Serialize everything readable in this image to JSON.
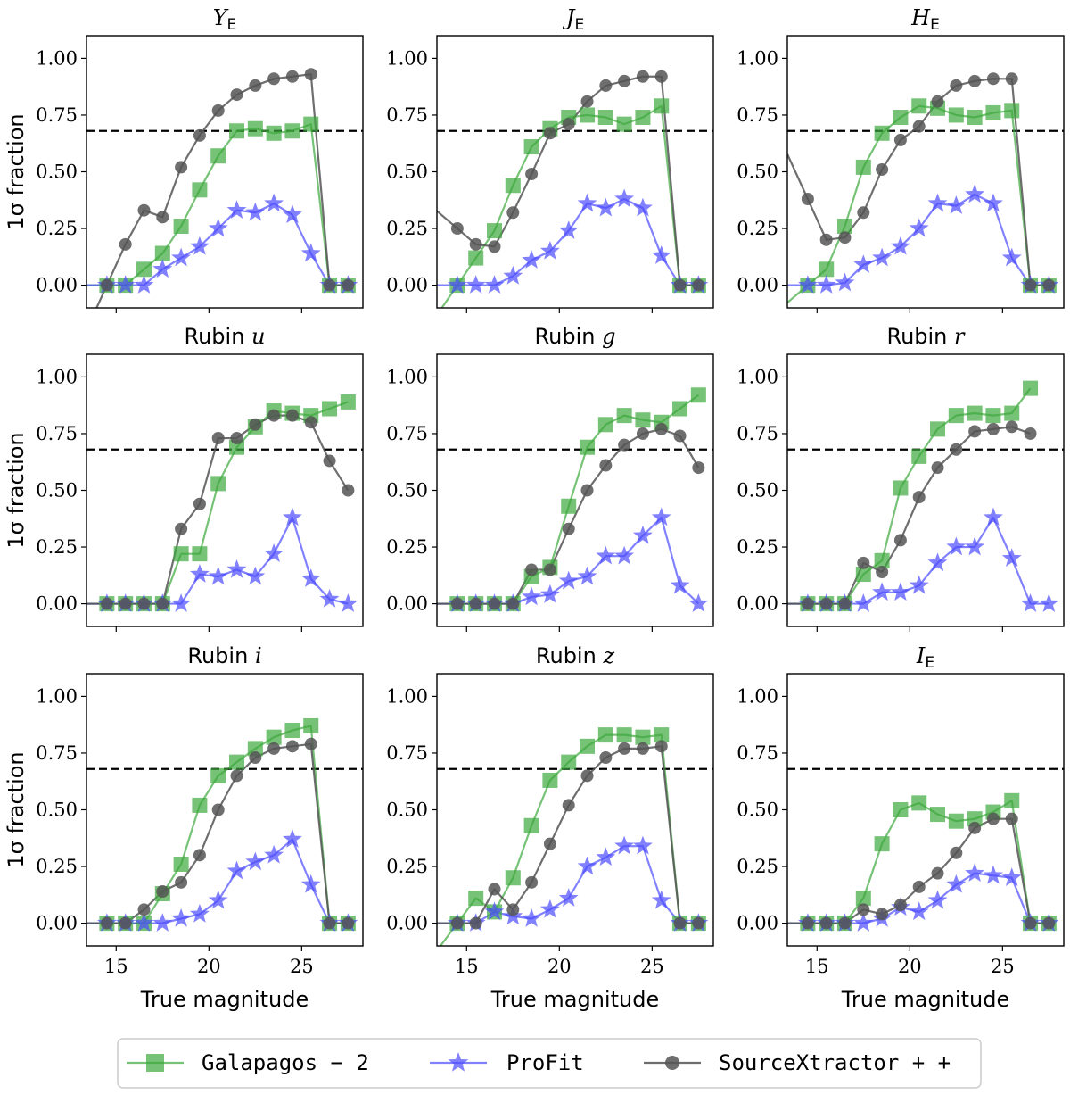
{
  "chart_data": {
    "type": "line",
    "panel_grid": "3x3",
    "shared_x": [
      14.5,
      15.5,
      16.5,
      17.5,
      18.5,
      19.5,
      20.5,
      21.5,
      22.5,
      23.5,
      24.5,
      25.5,
      26.5,
      27.5
    ],
    "xlim": [
      13.4,
      28.3
    ],
    "ylim": [
      -0.1,
      1.1
    ],
    "xticks": [
      "15",
      "20",
      "25"
    ],
    "yticks": [
      "0.00",
      "0.25",
      "0.50",
      "0.75",
      "1.00"
    ],
    "ylabel": "1σ fraction",
    "xlabel": "True magnitude",
    "reference_line": 0.68,
    "legend": {
      "placement": "bottom-center",
      "entries": [
        {
          "name": "Galapagos − 2",
          "color": "#3ca83c",
          "marker": "square"
        },
        {
          "name": "ProFit",
          "color": "#4b4bff",
          "marker": "star"
        },
        {
          "name": "SourceXtractor + +",
          "color": "#555555",
          "marker": "circle"
        }
      ]
    },
    "panels": [
      {
        "title_prefix": "",
        "title_ital": "Y",
        "title_sub": "E",
        "series": {
          "galapagos": [
            0,
            0,
            0.07,
            0.14,
            0.26,
            0.42,
            0.57,
            0.68,
            0.69,
            0.67,
            0.68,
            0.71,
            0,
            0
          ],
          "profit": [
            0,
            0,
            0,
            0.07,
            0.12,
            0.17,
            0.25,
            0.33,
            0.32,
            0.36,
            0.31,
            0.14,
            0,
            0
          ],
          "sextractor": [
            0,
            0.18,
            0.33,
            0.3,
            0.52,
            0.66,
            0.77,
            0.84,
            0.88,
            0.91,
            0.92,
            0.93,
            0,
            0
          ]
        }
      },
      {
        "title_prefix": "",
        "title_ital": "J",
        "title_sub": "E",
        "series": {
          "galapagos": [
            0,
            0.12,
            0.24,
            0.44,
            0.61,
            0.69,
            0.74,
            0.75,
            0.74,
            0.71,
            0.74,
            0.79,
            0,
            0
          ],
          "profit": [
            0,
            0,
            0,
            0.04,
            0.11,
            0.15,
            0.24,
            0.36,
            0.34,
            0.38,
            0.34,
            0.13,
            0,
            0
          ],
          "sextractor": [
            0.25,
            0.18,
            0.17,
            0.32,
            0.49,
            0.67,
            0.71,
            0.81,
            0.88,
            0.9,
            0.92,
            0.92,
            0,
            0
          ]
        }
      },
      {
        "title_prefix": "",
        "title_ital": "H",
        "title_sub": "E",
        "series": {
          "galapagos": [
            0,
            0.07,
            0.26,
            0.52,
            0.67,
            0.74,
            0.79,
            0.78,
            0.75,
            0.74,
            0.76,
            0.77,
            0,
            0
          ],
          "profit": [
            0,
            0,
            0.01,
            0.09,
            0.12,
            0.17,
            0.25,
            0.36,
            0.35,
            0.4,
            0.36,
            0.12,
            0,
            0
          ],
          "sextractor": [
            0.38,
            0.2,
            0.21,
            0.32,
            0.51,
            0.64,
            0.7,
            0.81,
            0.88,
            0.9,
            0.91,
            0.91,
            0,
            0
          ]
        }
      },
      {
        "title_prefix": "Rubin ",
        "title_ital": "u",
        "title_sub": "",
        "series": {
          "galapagos": [
            0,
            0,
            0,
            0,
            0.22,
            0.22,
            0.53,
            0.69,
            0.78,
            0.85,
            0.84,
            0.83,
            0.86,
            0.89
          ],
          "profit": [
            0,
            0,
            0,
            0,
            0,
            0.13,
            0.12,
            0.15,
            0.12,
            0.22,
            0.38,
            0.11,
            0.02,
            0
          ],
          "sextractor": [
            0,
            0,
            0,
            0,
            0.33,
            0.44,
            0.73,
            0.73,
            0.79,
            0.83,
            0.83,
            0.8,
            0.63,
            0.5
          ]
        }
      },
      {
        "title_prefix": "Rubin ",
        "title_ital": "g",
        "title_sub": "",
        "series": {
          "galapagos": [
            0,
            0,
            0,
            0,
            0.12,
            0.16,
            0.43,
            0.69,
            0.79,
            0.83,
            0.81,
            0.8,
            0.86,
            0.92
          ],
          "profit": [
            0,
            0,
            0,
            0,
            0.03,
            0.04,
            0.1,
            0.12,
            0.21,
            0.21,
            0.3,
            0.38,
            0.08,
            0
          ],
          "sextractor": [
            0,
            0,
            0,
            0,
            0.15,
            0.15,
            0.33,
            0.5,
            0.61,
            0.7,
            0.75,
            0.77,
            0.74,
            0.6
          ]
        }
      },
      {
        "title_prefix": "Rubin ",
        "title_ital": "r",
        "title_sub": "",
        "series": {
          "galapagos": [
            0,
            0,
            0,
            0.13,
            0.19,
            0.51,
            0.65,
            0.77,
            0.83,
            0.84,
            0.83,
            0.84,
            0.95,
            null
          ],
          "profit": [
            0,
            0,
            0,
            0,
            0.05,
            0.05,
            0.08,
            0.18,
            0.25,
            0.25,
            0.38,
            0.2,
            0,
            0
          ],
          "sextractor": [
            0,
            0,
            0,
            0.18,
            0.14,
            0.28,
            0.47,
            0.6,
            0.68,
            0.76,
            0.77,
            0.78,
            0.75,
            null
          ]
        }
      },
      {
        "title_prefix": "Rubin ",
        "title_ital": "i",
        "title_sub": "",
        "series": {
          "galapagos": [
            0,
            0,
            0,
            0.13,
            0.26,
            0.52,
            0.65,
            0.71,
            0.77,
            0.82,
            0.85,
            0.87,
            0,
            0
          ],
          "profit": [
            0,
            0,
            0,
            0,
            0.02,
            0.04,
            0.1,
            0.23,
            0.27,
            0.3,
            0.37,
            0.17,
            0,
            0
          ],
          "sextractor": [
            0,
            0,
            0.06,
            0.14,
            0.18,
            0.3,
            0.5,
            0.65,
            0.73,
            0.77,
            0.78,
            0.79,
            0,
            0
          ]
        }
      },
      {
        "title_prefix": "Rubin ",
        "title_ital": "z",
        "title_sub": "",
        "series": {
          "galapagos": [
            0,
            0.11,
            0.05,
            0.2,
            0.43,
            0.63,
            0.71,
            0.78,
            0.83,
            0.83,
            0.82,
            0.83,
            0,
            0
          ],
          "profit": [
            0,
            0,
            0.05,
            0.03,
            0.02,
            0.06,
            0.11,
            0.25,
            0.29,
            0.34,
            0.34,
            0.1,
            0,
            0
          ],
          "sextractor": [
            0,
            0,
            0.15,
            0.06,
            0.18,
            0.35,
            0.52,
            0.65,
            0.73,
            0.77,
            0.77,
            0.78,
            0,
            0
          ]
        }
      },
      {
        "title_prefix": "",
        "title_ital": "I",
        "title_sub": "E",
        "series": {
          "galapagos": [
            0,
            0,
            0,
            0.11,
            0.35,
            0.5,
            0.53,
            0.48,
            0.45,
            0.46,
            0.49,
            0.54,
            0,
            0
          ],
          "profit": [
            0,
            0,
            0,
            0,
            0.02,
            0.07,
            0.05,
            0.1,
            0.17,
            0.22,
            0.21,
            0.2,
            0,
            0
          ],
          "sextractor": [
            0,
            0,
            0,
            0.06,
            0.04,
            0.08,
            0.16,
            0.22,
            0.31,
            0.42,
            0.46,
            0.46,
            0,
            0
          ]
        }
      }
    ]
  }
}
